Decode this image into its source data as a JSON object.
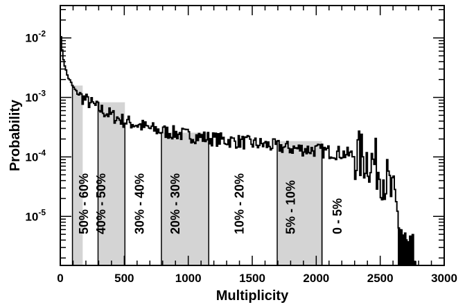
{
  "chart_data": {
    "type": "line",
    "xlabel": "Multiplicity",
    "ylabel": "Probability",
    "xlim": [
      0,
      3000
    ],
    "ylim": [
      1.5e-06,
      0.035
    ],
    "yscale": "log",
    "grid": false,
    "x_ticks": [
      {
        "value": 0,
        "label": "0"
      },
      {
        "value": 500,
        "label": "500"
      },
      {
        "value": 1000,
        "label": "1000"
      },
      {
        "value": 1500,
        "label": "1500"
      },
      {
        "value": 2000,
        "label": "2000"
      },
      {
        "value": 2500,
        "label": "2500"
      },
      {
        "value": 3000,
        "label": "3000"
      }
    ],
    "y_ticks": [
      {
        "value": 0.01,
        "base": "10",
        "exp": "-2"
      },
      {
        "value": 0.001,
        "base": "10",
        "exp": "-3"
      },
      {
        "value": 0.0001,
        "base": "10",
        "exp": "-4"
      },
      {
        "value": 1e-05,
        "base": "10",
        "exp": "-5"
      }
    ],
    "centrality_bins": [
      {
        "label": "50% - 60%",
        "x_start": 95,
        "x_end": 175,
        "shaded": true,
        "label_x": 185
      },
      {
        "label": "40% - 50%",
        "x_start": 295,
        "x_end": 505,
        "shaded": true,
        "label_x": 320
      },
      {
        "label": "30% - 40%",
        "x_start": 505,
        "x_end": 790,
        "shaded": false,
        "label_x": 620
      },
      {
        "label": "20% - 30%",
        "x_start": 790,
        "x_end": 1160,
        "shaded": true,
        "label_x": 900
      },
      {
        "label": "10% - 20%",
        "x_start": 1160,
        "x_end": 1695,
        "shaded": false,
        "label_x": 1400
      },
      {
        "label": "5% - 10%",
        "x_start": 1695,
        "x_end": 2045,
        "shaded": true,
        "label_x": 1800
      },
      {
        "label": "0 - 5%",
        "x_start": 2045,
        "x_end": 2900,
        "shaded": false,
        "label_x": 2165
      }
    ],
    "series": [
      {
        "curve": [
          [
            0,
            0.018
          ],
          [
            10,
            0.007
          ],
          [
            20,
            0.005
          ],
          [
            35,
            0.0035
          ],
          [
            50,
            0.0025
          ],
          [
            70,
            0.002
          ],
          [
            100,
            0.0015
          ],
          [
            130,
            0.0012
          ],
          [
            170,
            0.001
          ],
          [
            220,
            0.00085
          ],
          [
            300,
            0.00065
          ],
          [
            400,
            0.0005
          ],
          [
            500,
            0.0004
          ],
          [
            600,
            0.00035
          ],
          [
            700,
            0.0003
          ],
          [
            800,
            0.00027
          ],
          [
            900,
            0.00025
          ],
          [
            1000,
            0.00023
          ],
          [
            1200,
            0.0002
          ],
          [
            1400,
            0.00018
          ],
          [
            1600,
            0.00016
          ],
          [
            1800,
            0.00014
          ],
          [
            2000,
            0.00013
          ],
          [
            2200,
            0.000115
          ],
          [
            2300,
            0.000105
          ],
          [
            2400,
            9.5e-05
          ],
          [
            2450,
            8e-05
          ],
          [
            2500,
            6e-05
          ],
          [
            2550,
            4e-05
          ],
          [
            2600,
            2e-05
          ],
          [
            2650,
            8e-06
          ],
          [
            2700,
            3e-06
          ],
          [
            2750,
            1.8e-06
          ]
        ]
      }
    ]
  }
}
